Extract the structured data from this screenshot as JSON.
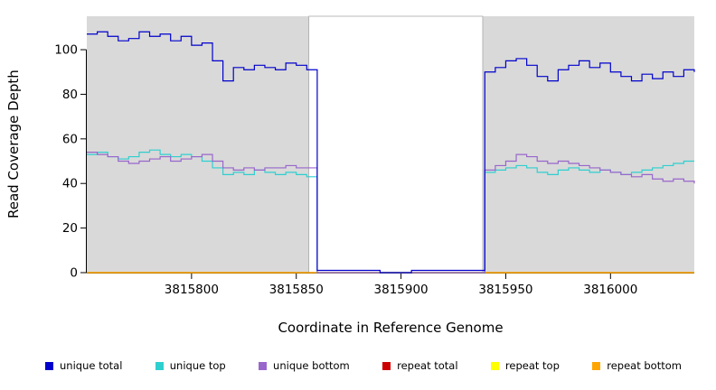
{
  "chart_data": {
    "type": "line",
    "subtype": "step-after",
    "title": "",
    "xlabel": "Coordinate in Reference Genome",
    "ylabel": "Read Coverage Depth",
    "xlim": [
      3815750,
      3816040
    ],
    "ylim": [
      0,
      115
    ],
    "xticks": [
      3815800,
      3815850,
      3815900,
      3815950,
      3816000
    ],
    "yticks": [
      0,
      20,
      40,
      60,
      80,
      100
    ],
    "grid": false,
    "legend_position": "bottom",
    "panel_background": "#d9d9d9",
    "gap_region": {
      "x0": 3815856,
      "x1": 3815939,
      "fill": "#ffffff",
      "stroke": "#aaaaaa"
    },
    "x_start": 3815750,
    "x_step": 5,
    "series": [
      {
        "name": "unique total",
        "color": "#0000CD",
        "values": [
          107,
          108,
          106,
          104,
          105,
          108,
          106,
          107,
          104,
          106,
          102,
          103,
          95,
          86,
          92,
          91,
          93,
          92,
          91,
          94,
          93,
          91,
          1,
          1,
          1,
          1,
          1,
          1,
          0,
          0,
          0,
          1,
          1,
          1,
          1,
          1,
          1,
          1,
          90,
          92,
          95,
          96,
          93,
          88,
          86,
          91,
          93,
          95,
          92,
          94,
          90,
          88,
          86,
          89,
          87,
          90,
          88,
          91,
          90
        ]
      },
      {
        "name": "unique top",
        "color": "#2FCFCF",
        "values": [
          53,
          54,
          52,
          51,
          52,
          54,
          55,
          53,
          52,
          53,
          52,
          50,
          47,
          44,
          45,
          44,
          46,
          45,
          44,
          45,
          44,
          43,
          0,
          0,
          0,
          0,
          0,
          0,
          0,
          0,
          0,
          0,
          0,
          0,
          0,
          0,
          0,
          0,
          45,
          46,
          47,
          48,
          47,
          45,
          44,
          46,
          47,
          46,
          45,
          46,
          45,
          44,
          45,
          46,
          47,
          48,
          49,
          50,
          50
        ]
      },
      {
        "name": "unique bottom",
        "color": "#9966CC",
        "values": [
          54,
          53,
          52,
          50,
          49,
          50,
          51,
          52,
          50,
          51,
          52,
          53,
          50,
          47,
          46,
          47,
          46,
          47,
          47,
          48,
          47,
          47,
          0,
          0,
          0,
          0,
          0,
          0,
          0,
          0,
          0,
          0,
          0,
          0,
          0,
          0,
          0,
          0,
          46,
          48,
          50,
          53,
          52,
          50,
          49,
          50,
          49,
          48,
          47,
          46,
          45,
          44,
          43,
          44,
          42,
          41,
          42,
          41,
          40
        ]
      },
      {
        "name": "repeat total",
        "color": "#CC0000",
        "constant": 0
      },
      {
        "name": "repeat top",
        "color": "#FFFF00",
        "constant": 0
      },
      {
        "name": "repeat bottom",
        "color": "#FFA500",
        "constant": 0
      }
    ]
  }
}
